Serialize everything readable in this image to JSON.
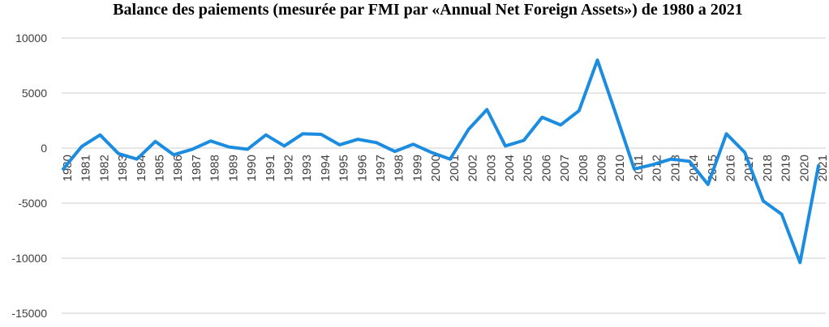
{
  "page": {
    "title": "Balance des paiements (mesurée par FMI par «Annual Net Foreign Assets») de 1980 a 2021"
  },
  "chart_data": {
    "type": "line",
    "title": "Balance des paiements (mesurée par FMI par «Annual Net Foreign Assets») de 1980 a 2021",
    "categories": [
      "1980",
      "1981",
      "1982",
      "1983",
      "1984",
      "1985",
      "1986",
      "1987",
      "1988",
      "1989",
      "1990",
      "1991",
      "1992",
      "1993",
      "1994",
      "1995",
      "1996",
      "1997",
      "1998",
      "1999",
      "2000",
      "2001",
      "2002",
      "2003",
      "2004",
      "2005",
      "2006",
      "2007",
      "2008",
      "2009",
      "2010",
      "2011",
      "2012",
      "2013",
      "2014",
      "2015",
      "2016",
      "2017",
      "2018",
      "2019",
      "2020",
      "2021"
    ],
    "values": [
      -1900,
      150,
      1200,
      -500,
      -1000,
      600,
      -600,
      -100,
      650,
      100,
      -100,
      1200,
      200,
      1300,
      1250,
      300,
      800,
      500,
      -300,
      350,
      -400,
      -1000,
      1700,
      3500,
      200,
      700,
      2800,
      2100,
      3400,
      8000,
      3100,
      -1900,
      -1500,
      -1000,
      -1200,
      -3300,
      1300,
      -400,
      -4800,
      -6000,
      -10400,
      -1600
    ],
    "xlabel": "",
    "ylabel": "",
    "ylim": [
      -15000,
      10000
    ],
    "yticks": [
      10000,
      5000,
      0,
      -5000,
      -10000,
      -15000
    ],
    "grid": "horizontal",
    "legend": "none",
    "x_tick_rotation_deg": -90,
    "colors": {
      "line": "#1b8ce0",
      "gridline": "#d6d6d6",
      "tick_label": "#3d3d3d",
      "title": "#000000",
      "background": "#ffffff"
    }
  }
}
